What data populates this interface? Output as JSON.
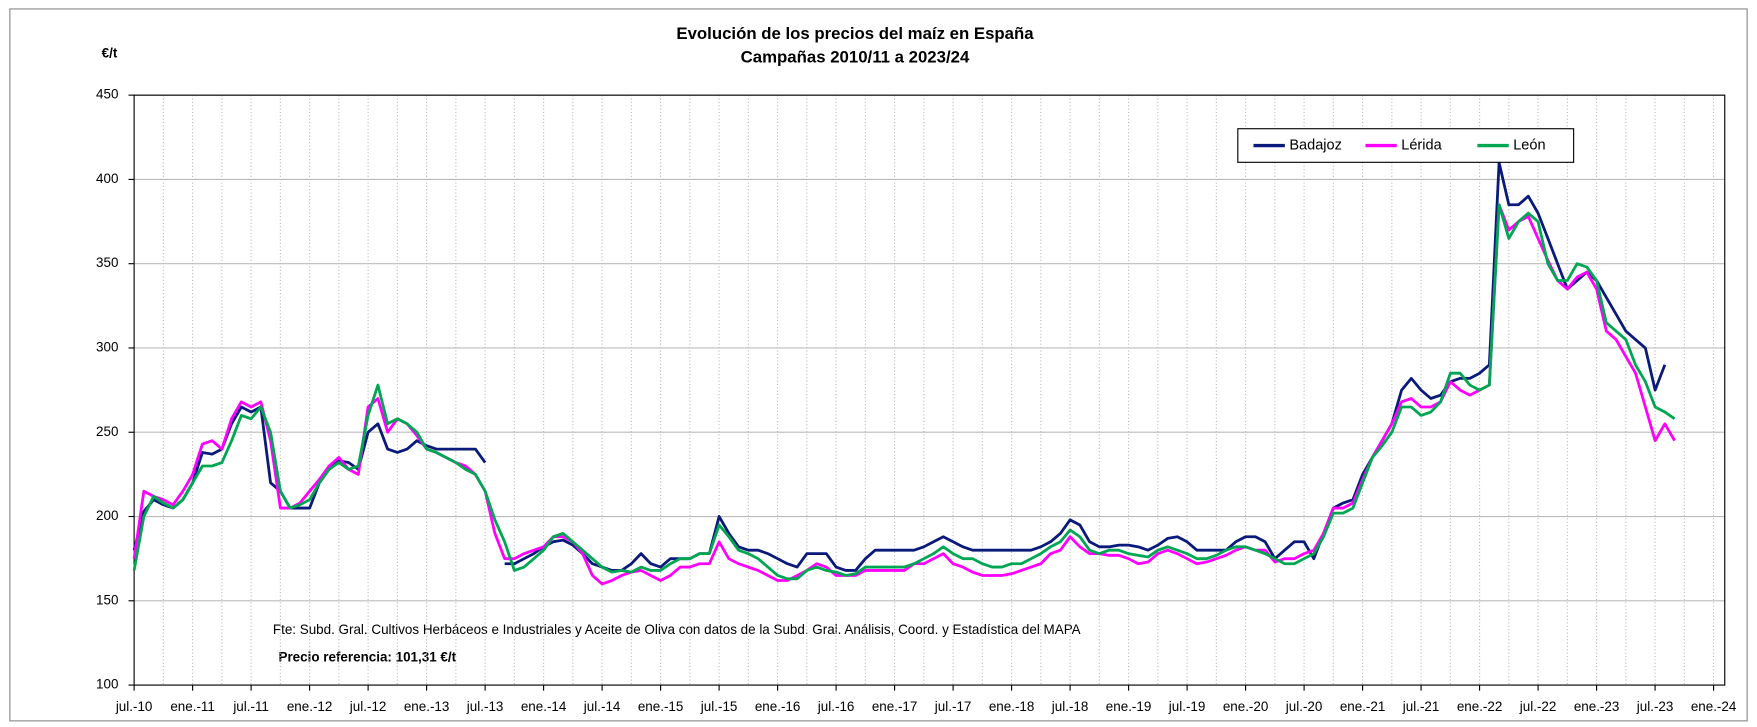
{
  "chart_data": {
    "type": "line",
    "title": "Evolución de los precios del maíz en España",
    "subtitle": "Campañas 2010/11 a 2023/24",
    "y_label": "€/t",
    "annotations": [
      "Fte: Subd. Gral. Cultivos Herbáceos e Industriales y Aceite de Oliva con datos de la Subd. Gral. Análisis, Coord. y Estadística del MAPA",
      "Precio referencia: 101,31 €/t"
    ],
    "categories": [
      "jul.-10",
      null,
      null,
      null,
      null,
      null,
      "ene.-11",
      null,
      null,
      null,
      null,
      null,
      "jul.-11",
      null,
      null,
      null,
      null,
      null,
      "ene.-12",
      null,
      null,
      null,
      null,
      null,
      "jul.-12",
      null,
      null,
      null,
      null,
      null,
      "ene.-13",
      null,
      null,
      null,
      null,
      null,
      "jul.-13",
      null,
      null,
      null,
      null,
      null,
      "ene.-14",
      null,
      null,
      null,
      null,
      null,
      "jul.-14",
      null,
      null,
      null,
      null,
      null,
      "ene.-15",
      null,
      null,
      null,
      null,
      null,
      "jul.-15",
      null,
      null,
      null,
      null,
      null,
      "ene.-16",
      null,
      null,
      null,
      null,
      null,
      "jul.-16",
      null,
      null,
      null,
      null,
      null,
      "ene.-17",
      null,
      null,
      null,
      null,
      null,
      "jul.-17",
      null,
      null,
      null,
      null,
      null,
      "ene.-18",
      null,
      null,
      null,
      null,
      null,
      "jul.-18",
      null,
      null,
      null,
      null,
      null,
      "ene.-19",
      null,
      null,
      null,
      null,
      null,
      "jul.-19",
      null,
      null,
      null,
      null,
      null,
      "ene.-20",
      null,
      null,
      null,
      null,
      null,
      "jul.-20",
      null,
      null,
      null,
      null,
      null,
      "ene.-21",
      null,
      null,
      null,
      null,
      null,
      "jul.-21",
      null,
      null,
      null,
      null,
      null,
      "ene.-22",
      null,
      null,
      null,
      null,
      null,
      "jul.-22",
      null,
      null,
      null,
      null,
      null,
      "ene.-23",
      null,
      null,
      null,
      null,
      null,
      "jul.-23",
      null,
      null,
      null,
      null,
      null,
      "ene.-24"
    ],
    "series": [
      {
        "name": "Badajoz",
        "color": "#0a1a7a",
        "values": [
          180,
          203,
          210,
          207,
          205,
          210,
          220,
          238,
          237,
          240,
          255,
          265,
          262,
          265,
          220,
          215,
          205,
          205,
          205,
          220,
          228,
          233,
          232,
          228,
          250,
          255,
          240,
          238,
          240,
          245,
          242,
          240,
          240,
          240,
          240,
          240,
          232,
          null,
          172,
          172,
          175,
          178,
          182,
          185,
          186,
          183,
          178,
          172,
          170,
          168,
          168,
          172,
          178,
          172,
          170,
          175,
          175,
          175,
          178,
          178,
          200,
          190,
          182,
          180,
          180,
          178,
          175,
          172,
          170,
          178,
          178,
          178,
          170,
          168,
          168,
          175,
          180,
          180,
          180,
          180,
          180,
          182,
          185,
          188,
          185,
          182,
          180,
          180,
          180,
          180,
          180,
          180,
          180,
          182,
          185,
          190,
          198,
          195,
          185,
          182,
          182,
          183,
          183,
          182,
          180,
          183,
          187,
          188,
          185,
          180,
          180,
          180,
          180,
          185,
          188,
          188,
          185,
          175,
          180,
          185,
          185,
          175,
          190,
          205,
          208,
          210,
          225,
          235,
          245,
          255,
          275,
          282,
          275,
          270,
          272,
          280,
          282,
          282,
          285,
          290,
          410,
          385,
          385,
          390,
          380,
          365,
          350,
          335,
          340,
          345,
          340,
          330,
          320,
          310,
          305,
          300,
          275,
          290,
          null,
          null,
          null,
          null,
          null
        ]
      },
      {
        "name": "Lérida",
        "color": "#ff00ff",
        "values": [
          175,
          215,
          212,
          210,
          207,
          215,
          225,
          243,
          245,
          240,
          258,
          268,
          265,
          268,
          245,
          205,
          205,
          208,
          215,
          222,
          230,
          235,
          228,
          225,
          265,
          270,
          250,
          258,
          255,
          248,
          240,
          238,
          235,
          232,
          230,
          225,
          215,
          190,
          175,
          175,
          178,
          180,
          182,
          188,
          188,
          185,
          178,
          165,
          160,
          162,
          165,
          167,
          168,
          165,
          162,
          165,
          170,
          170,
          172,
          172,
          185,
          175,
          172,
          170,
          168,
          165,
          162,
          162,
          165,
          168,
          172,
          170,
          165,
          165,
          165,
          168,
          168,
          168,
          168,
          168,
          172,
          172,
          175,
          178,
          172,
          170,
          167,
          165,
          165,
          165,
          166,
          168,
          170,
          172,
          178,
          180,
          188,
          182,
          178,
          178,
          177,
          177,
          175,
          172,
          173,
          178,
          180,
          178,
          175,
          172,
          173,
          175,
          177,
          180,
          182,
          180,
          180,
          173,
          175,
          175,
          178,
          180,
          190,
          205,
          205,
          208,
          222,
          235,
          245,
          255,
          268,
          270,
          265,
          265,
          268,
          280,
          275,
          272,
          275,
          278,
          385,
          370,
          375,
          378,
          365,
          352,
          340,
          335,
          342,
          345,
          335,
          310,
          305,
          295,
          285,
          265,
          245,
          255,
          245,
          null,
          null,
          null,
          null
        ]
      },
      {
        "name": "León",
        "color": "#00a651",
        "values": [
          168,
          200,
          212,
          208,
          205,
          210,
          220,
          230,
          230,
          232,
          245,
          260,
          258,
          265,
          250,
          215,
          205,
          207,
          210,
          220,
          228,
          232,
          228,
          230,
          260,
          278,
          255,
          258,
          255,
          250,
          240,
          238,
          235,
          232,
          228,
          225,
          215,
          198,
          185,
          168,
          170,
          175,
          180,
          188,
          190,
          185,
          180,
          175,
          170,
          167,
          168,
          167,
          170,
          168,
          168,
          172,
          175,
          175,
          178,
          178,
          195,
          188,
          180,
          178,
          175,
          170,
          165,
          163,
          163,
          168,
          170,
          168,
          167,
          165,
          166,
          170,
          170,
          170,
          170,
          170,
          172,
          175,
          178,
          182,
          178,
          175,
          175,
          172,
          170,
          170,
          172,
          172,
          175,
          178,
          182,
          185,
          192,
          188,
          180,
          178,
          180,
          180,
          178,
          177,
          176,
          180,
          182,
          180,
          178,
          175,
          175,
          177,
          180,
          182,
          182,
          180,
          178,
          175,
          172,
          172,
          175,
          178,
          188,
          202,
          202,
          205,
          220,
          235,
          242,
          250,
          265,
          265,
          260,
          262,
          268,
          285,
          285,
          278,
          275,
          278,
          385,
          365,
          375,
          380,
          375,
          350,
          340,
          340,
          350,
          348,
          340,
          315,
          310,
          305,
          290,
          280,
          265,
          262,
          258,
          null,
          null,
          null,
          null
        ]
      }
    ],
    "ylim": [
      100,
      450
    ],
    "yticks": [
      100,
      150,
      200,
      250,
      300,
      350,
      400,
      450
    ],
    "grid": true,
    "legend": "upper right"
  }
}
